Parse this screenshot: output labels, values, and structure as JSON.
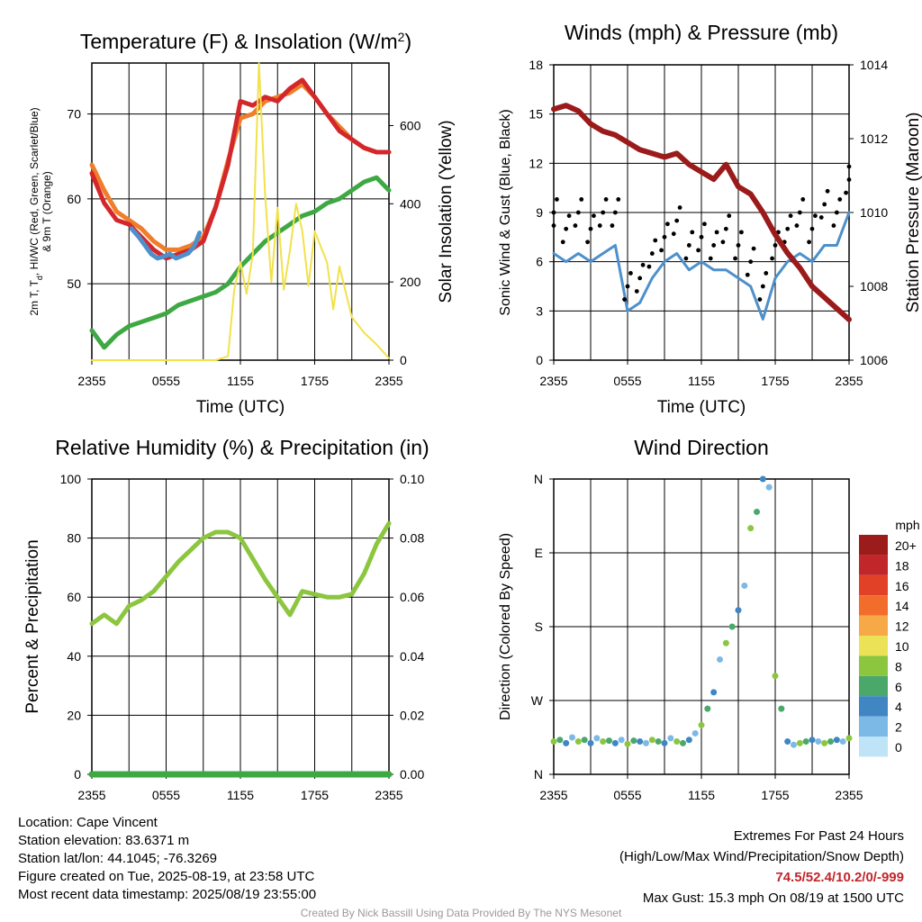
{
  "figure": {
    "bg": "#ffffff"
  },
  "chart_data": [
    {
      "id": "temperature",
      "type": "line",
      "title": "Temperature (F) & Insolation (W/m",
      "title_sup": "2",
      "title_end": ")",
      "xlabel": "Time (UTC)",
      "ylabel_lines": [
        "2m T, T",
        "d",
        ", HI/WC (Red, Green, Scarlet/Blue)",
        "& 9m T (Orange)"
      ],
      "ylabel2": "Solar Insolation (Yellow)",
      "xticks": [
        "2355",
        "0555",
        "1155",
        "1755",
        "2355"
      ],
      "yticks": [
        50,
        60,
        70
      ],
      "ylim": [
        41,
        76
      ],
      "y2ticks": [
        0,
        200,
        400,
        600
      ],
      "y2lim": [
        0,
        760
      ],
      "series": [
        {
          "color": "#f07d2a",
          "x": [
            0,
            1,
            2,
            3,
            4,
            5,
            6,
            7,
            8,
            9,
            10,
            11,
            12,
            13,
            14,
            15,
            16,
            17,
            18,
            19,
            20,
            21,
            22,
            23,
            24
          ],
          "y": [
            64,
            61,
            58.5,
            57.5,
            56.5,
            55,
            54,
            54,
            54.5,
            55.5,
            59,
            64.5,
            69.5,
            70,
            71.5,
            72,
            72.5,
            73.5,
            72,
            70,
            68.5,
            67,
            66,
            65.5,
            65.5
          ]
        },
        {
          "color": "#d3272b",
          "x": [
            0,
            1,
            2,
            3,
            4,
            5,
            6,
            7,
            8,
            9,
            10,
            11,
            12,
            13,
            14,
            15,
            16,
            17,
            18,
            19,
            20,
            21,
            22,
            23,
            24
          ],
          "y": [
            63,
            59.5,
            57.5,
            57,
            55.5,
            54,
            53,
            53.5,
            54,
            55,
            59,
            64,
            71.5,
            71,
            72,
            71.5,
            73,
            74,
            72,
            70,
            68,
            67,
            66,
            65.5,
            65.5
          ]
        },
        {
          "color": "#4d90cb",
          "x": [
            3.2,
            3.8,
            4.3,
            4.8,
            5.3,
            5.8,
            6.3,
            6.8,
            7.3,
            7.8,
            8.3,
            8.7
          ],
          "y": [
            56.5,
            55.5,
            54.5,
            53.5,
            53,
            53.2,
            53.5,
            53,
            53.3,
            53.6,
            54.5,
            56
          ]
        },
        {
          "color": "#3ea843",
          "x": [
            0,
            1,
            2,
            3,
            4,
            5,
            6,
            7,
            8,
            9,
            10,
            11,
            12,
            13,
            14,
            15,
            16,
            17,
            18,
            19,
            20,
            21,
            22,
            23,
            24
          ],
          "y": [
            44.5,
            42.5,
            44,
            45,
            45.5,
            46,
            46.5,
            47.5,
            48,
            48.5,
            49,
            50,
            52,
            53.5,
            55,
            56,
            57,
            58,
            58.5,
            59.5,
            60,
            61,
            62,
            62.5,
            61
          ]
        },
        {
          "color": "#f1e24b",
          "axis": "y2",
          "x": [
            0,
            4,
            8,
            10,
            11,
            11.5,
            12,
            12.5,
            13,
            13.5,
            14,
            14.5,
            15,
            15.5,
            16,
            16.5,
            17,
            17.5,
            18,
            18.5,
            19,
            19.5,
            20,
            21,
            22,
            23,
            24
          ],
          "y": [
            0,
            0,
            0,
            0,
            10,
            180,
            250,
            170,
            270,
            760,
            420,
            200,
            390,
            180,
            280,
            400,
            330,
            190,
            330,
            290,
            250,
            130,
            240,
            110,
            70,
            40,
            5
          ]
        }
      ]
    },
    {
      "id": "winds",
      "type": "line",
      "title": "Winds (mph) & Pressure (mb)",
      "xlabel": "Time (UTC)",
      "ylabel": "Sonic Wind & Gust (Blue, Black)",
      "ylabel2": "Station Pressure (Maroon)",
      "xticks": [
        "2355",
        "0555",
        "1155",
        "1755",
        "2355"
      ],
      "yticks": [
        0,
        3,
        6,
        9,
        12,
        15,
        18
      ],
      "ylim": [
        0,
        18
      ],
      "y2ticks": [
        1006,
        1008,
        1010,
        1012,
        1014
      ],
      "y2lim": [
        1006,
        1014
      ],
      "series": [
        {
          "name": "wind",
          "color": "#4d90cb",
          "x": [
            0,
            1,
            2,
            3,
            4,
            5,
            6,
            7,
            8,
            9,
            10,
            11,
            12,
            13,
            14,
            15,
            16,
            17,
            18,
            19,
            20,
            21,
            22,
            23,
            24
          ],
          "y": [
            6.5,
            6,
            6.5,
            6,
            6.5,
            7,
            3,
            3.5,
            5,
            6,
            6.5,
            5.5,
            6,
            5.5,
            5.5,
            5,
            4.5,
            2.5,
            5,
            6,
            6.5,
            6,
            7,
            7,
            9
          ]
        },
        {
          "name": "gust",
          "color": "#000000",
          "x": [
            0,
            1,
            2,
            3,
            4,
            5,
            6,
            7,
            8,
            9,
            10,
            11,
            12,
            13,
            14,
            15,
            16,
            17,
            18,
            19,
            20,
            21,
            22,
            23,
            24
          ],
          "y": [
            9,
            8,
            9,
            8,
            9,
            9,
            4.5,
            5,
            6.5,
            7.5,
            8.5,
            7,
            7.5,
            7,
            8,
            7,
            6,
            4.5,
            7,
            8,
            9,
            8,
            9.5,
            9,
            11
          ]
        },
        {
          "name": "pressure",
          "color": "#9b1b1b",
          "axis": "y2",
          "x": [
            0,
            1,
            2,
            3,
            4,
            5,
            6,
            7,
            8,
            9,
            10,
            11,
            12,
            13,
            14,
            15,
            16,
            17,
            18,
            19,
            20,
            21,
            22,
            23,
            24
          ],
          "y": [
            1012.8,
            1012.9,
            1012.75,
            1012.4,
            1012.2,
            1012.1,
            1011.9,
            1011.7,
            1011.6,
            1011.5,
            1011.6,
            1011.3,
            1011.1,
            1010.9,
            1011.3,
            1010.7,
            1010.5,
            1010.0,
            1009.4,
            1008.9,
            1008.5,
            1008.0,
            1007.7,
            1007.4,
            1007.1
          ]
        }
      ]
    },
    {
      "id": "humidity",
      "type": "line",
      "title": "Relative Humidity (%) & Precipitation (in)",
      "xlabel": "",
      "ylabel": "Percent & Precipitation",
      "xticks": [
        "2355",
        "0555",
        "1155",
        "1755",
        "2355"
      ],
      "yticks": [
        0,
        20,
        40,
        60,
        80,
        100
      ],
      "ylim": [
        0,
        100
      ],
      "y2ticks": [
        "0.00",
        "0.02",
        "0.04",
        "0.06",
        "0.08",
        "0.10"
      ],
      "series": [
        {
          "name": "rh",
          "color": "#8cc63f",
          "x": [
            0,
            1,
            2,
            3,
            4,
            5,
            6,
            7,
            8,
            9,
            10,
            11,
            12,
            13,
            14,
            15,
            16,
            17,
            18,
            19,
            20,
            21,
            22,
            23,
            24
          ],
          "y": [
            51,
            54,
            51,
            57,
            59,
            62,
            67,
            72,
            76,
            80,
            82,
            82,
            80,
            73,
            66,
            60,
            54,
            62,
            61,
            60,
            60,
            61,
            68,
            78,
            85
          ]
        },
        {
          "name": "precip",
          "color": "#3ea843",
          "x": [
            0,
            24
          ],
          "y": [
            0,
            0
          ]
        }
      ]
    },
    {
      "id": "direction",
      "type": "scatter",
      "title": "Wind Direction",
      "xlabel": "",
      "ylabel": "Direction (Colored By Speed)",
      "xticks": [
        "2355",
        "0555",
        "1155",
        "1755",
        "2355"
      ],
      "ytick_labels": [
        "N",
        "E",
        "S",
        "W",
        "N"
      ],
      "ylim": [
        0,
        360
      ],
      "legend_unit": "mph",
      "legend_labels": [
        "20+",
        "18",
        "16",
        "14",
        "12",
        "10",
        "8",
        "6",
        "4",
        "2",
        "0"
      ],
      "legend_colors": [
        "#9c1b1b",
        "#c0262a",
        "#e04127",
        "#f26d2c",
        "#f7a847",
        "#ece257",
        "#8cc63f",
        "#4aa86a",
        "#3f86c2",
        "#7cb9e6",
        "#bfe3f7"
      ],
      "points": [
        [
          0,
          40
        ],
        [
          0.5,
          42
        ],
        [
          1,
          38
        ],
        [
          1.5,
          45
        ],
        [
          2,
          40
        ],
        [
          2.5,
          42
        ],
        [
          3,
          38
        ],
        [
          3.5,
          44
        ],
        [
          4,
          40
        ],
        [
          4.5,
          41
        ],
        [
          5,
          38
        ],
        [
          5.5,
          42
        ],
        [
          6,
          37
        ],
        [
          6.5,
          41
        ],
        [
          7,
          40
        ],
        [
          7.5,
          38
        ],
        [
          8,
          42
        ],
        [
          8.5,
          40
        ],
        [
          9,
          38
        ],
        [
          9.5,
          44
        ],
        [
          10,
          40
        ],
        [
          10.5,
          38
        ],
        [
          11,
          42
        ],
        [
          11.5,
          50
        ],
        [
          12,
          60
        ],
        [
          12.5,
          80
        ],
        [
          13,
          100
        ],
        [
          13.5,
          140
        ],
        [
          14,
          160
        ],
        [
          14.5,
          180
        ],
        [
          15,
          200
        ],
        [
          15.5,
          230
        ],
        [
          16,
          300
        ],
        [
          16.5,
          320
        ],
        [
          17,
          360
        ],
        [
          17.5,
          350
        ],
        [
          18,
          120
        ],
        [
          18.5,
          80
        ],
        [
          19,
          40
        ],
        [
          19.5,
          36
        ],
        [
          20,
          38
        ],
        [
          20.5,
          40
        ],
        [
          21,
          42
        ],
        [
          21.5,
          40
        ],
        [
          22,
          38
        ],
        [
          22.5,
          40
        ],
        [
          23,
          42
        ],
        [
          23.5,
          40
        ],
        [
          24,
          44
        ]
      ]
    }
  ],
  "footer": {
    "left": [
      "Location: Cape Vincent",
      "Station elevation: 83.6371 m",
      "Station lat/lon: 44.1045; -76.3269",
      "Figure created on Tue, 2025-08-19, at 23:58 UTC",
      "Most recent data timestamp: 2025/08/19 23:55:00"
    ],
    "extremes_title": "Extremes For Past 24 Hours",
    "extremes_sub": "(High/Low/Max Wind/Precipitation/Snow Depth)",
    "extremes_values": "74.5/52.4/10.2/0/-999",
    "max_gust": "Max Gust: 15.3 mph On 08/19 at 1500 UTC",
    "credit": "Created By Nick Bassill Using Data Provided By The NYS Mesonet"
  }
}
